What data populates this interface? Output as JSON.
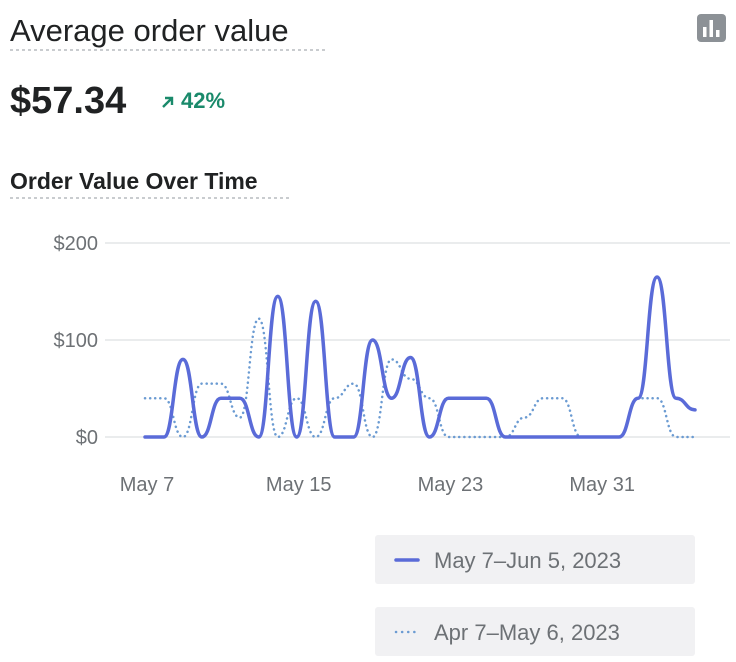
{
  "header": {
    "title": "Average order value",
    "value": "$57.34",
    "change": "42%"
  },
  "chart_data": {
    "type": "line",
    "title": "Order Value Over Time",
    "categories": [
      "May 7",
      null,
      null,
      null,
      null,
      null,
      null,
      null,
      "May 15",
      null,
      null,
      null,
      null,
      null,
      null,
      null,
      "May 23",
      null,
      null,
      null,
      null,
      null,
      null,
      null,
      "May 31",
      null,
      null,
      null,
      null,
      null
    ],
    "series": [
      {
        "name": "May 7–Jun 5, 2023",
        "color": "#5a6bd8",
        "line_style": "solid",
        "values": [
          0,
          0,
          80,
          0,
          40,
          40,
          0,
          145,
          0,
          140,
          0,
          0,
          100,
          40,
          82,
          0,
          40,
          40,
          40,
          0,
          0,
          0,
          0,
          0,
          0,
          0,
          40,
          165,
          40,
          28
        ]
      },
      {
        "name": "Apr 7–May 6, 2023",
        "color": "#6b9bd2",
        "line_style": "dotted",
        "values": [
          40,
          40,
          0,
          55,
          55,
          20,
          122,
          0,
          40,
          0,
          40,
          55,
          0,
          80,
          60,
          40,
          0,
          0,
          0,
          0,
          20,
          40,
          40,
          0,
          0,
          0,
          40,
          40,
          0,
          0
        ]
      }
    ],
    "ylim": [
      0,
      200
    ],
    "yticks": [
      {
        "value": 0,
        "label": "$0"
      },
      {
        "value": 100,
        "label": "$100"
      },
      {
        "value": 200,
        "label": "$200"
      }
    ],
    "grid": true
  }
}
